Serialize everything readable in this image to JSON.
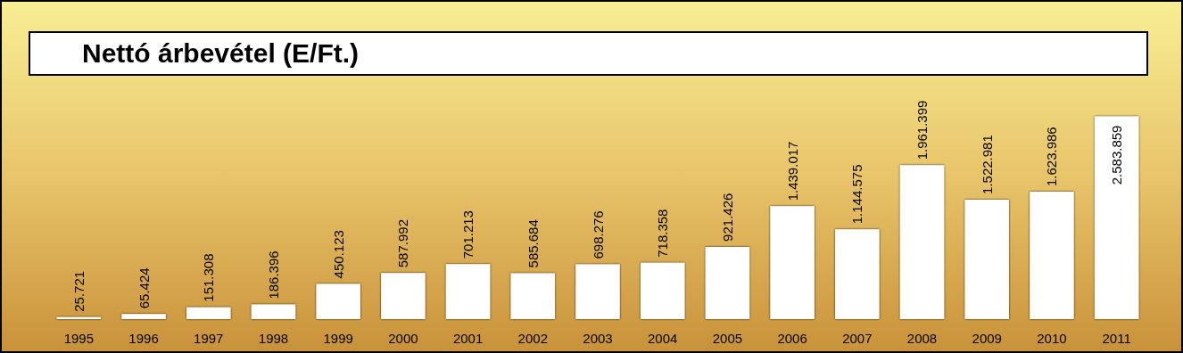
{
  "chart_data": {
    "type": "bar",
    "title": "Nettó árbevétel (E/Ft.)",
    "categories": [
      "1995",
      "1996",
      "1997",
      "1998",
      "1999",
      "2000",
      "2001",
      "2002",
      "2003",
      "2004",
      "2005",
      "2006",
      "2007",
      "2008",
      "2009",
      "2010",
      "2011"
    ],
    "values": [
      25721,
      65424,
      151308,
      186396,
      450123,
      587992,
      701213,
      585684,
      698276,
      718358,
      921426,
      1439017,
      1144575,
      1961399,
      1522981,
      1623986,
      2583859
    ],
    "value_labels": [
      "25.721",
      "65.424",
      "151.308",
      "186.396",
      "450.123",
      "587.992",
      "701.213",
      "585.684",
      "698.276",
      "718.358",
      "921.426",
      "1.439.017",
      "1.144.575",
      "1.961.399",
      "1.522.981",
      "1.623.986",
      "2.583.859"
    ],
    "color": "#ffffff",
    "grid": false,
    "tick_labels": "x"
  }
}
